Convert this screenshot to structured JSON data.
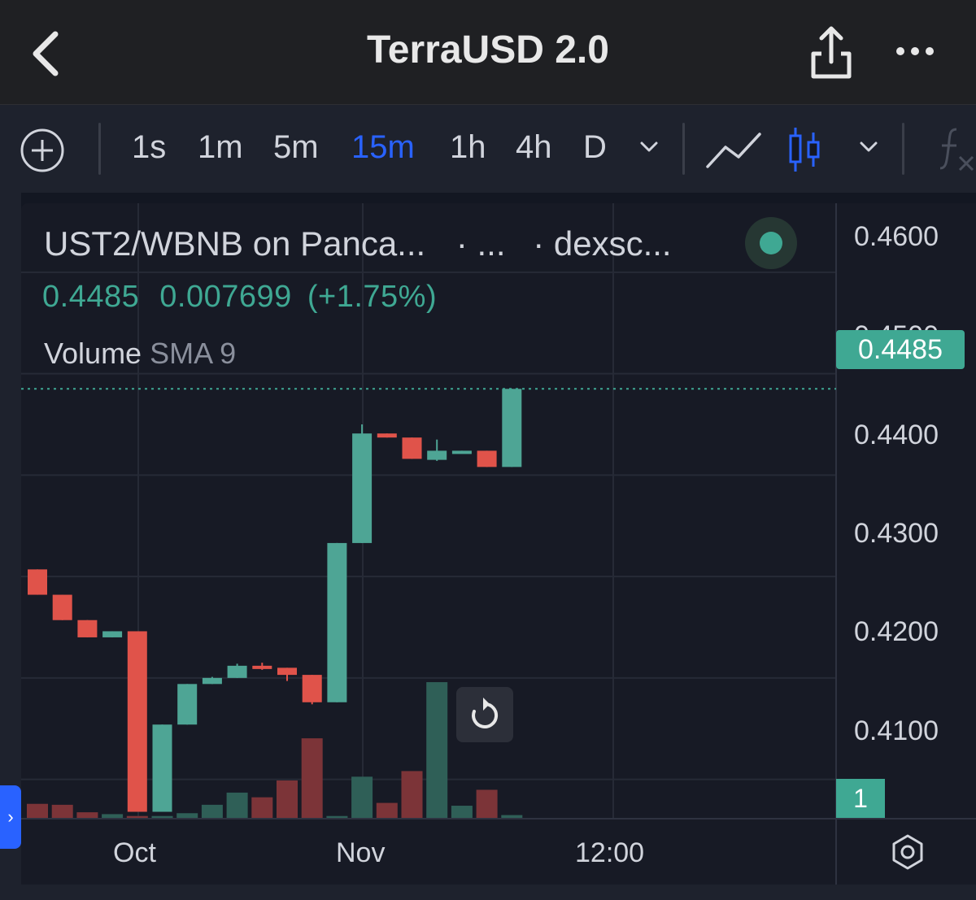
{
  "header": {
    "title": "TerraUSD 2.0",
    "back_icon": "chevron-left-icon",
    "share_icon": "share-icon",
    "more_icon": "more-horizontal-icon"
  },
  "toolbar": {
    "add_icon": "plus-circle-icon",
    "timeframes": [
      "1s",
      "1m",
      "5m",
      "15m",
      "1h",
      "4h",
      "D"
    ],
    "active_timeframe": "15m",
    "active_color": "#2962ff",
    "timeframe_dropdown_icon": "chevron-down-icon",
    "chart_type_line_icon": "line-chart-icon",
    "chart_type_candle_icon": "candlestick-icon",
    "chart_type_dropdown_icon": "chevron-down-icon",
    "indicators_icon": "function-icon"
  },
  "legend": {
    "symbol": "UST2/WBNB on Panca...",
    "interval": "· ...",
    "source": "· dexsc...",
    "last_price": "0.4485",
    "change": "0.007699",
    "change_pct": "(+1.75%)",
    "status": "market-open",
    "volume_label": "Volume",
    "volume_sma": "SMA 9"
  },
  "price_axis": {
    "labels": [
      "0.4600",
      "0.4500",
      "0.4400",
      "0.4300",
      "0.4200",
      "0.4100"
    ],
    "current_price_label": "0.4485",
    "volume_pane_label": "1"
  },
  "time_axis": {
    "labels": [
      "Oct",
      "Nov",
      "12:00"
    ]
  },
  "colors": {
    "up": "#4ea595",
    "down": "#e0534a",
    "up_volume": "#2f5f57",
    "down_volume": "#7c3438",
    "background": "#171a25",
    "grid": "#262a36",
    "price_line": "#3fa893"
  },
  "chart_data": {
    "type": "candlestick",
    "title": "",
    "ylim": [
      0.4062,
      0.4668
    ],
    "current_price": 0.4485,
    "candles": [
      {
        "o": 0.4307,
        "h": 0.4307,
        "l": 0.4282,
        "c": 0.4282
      },
      {
        "o": 0.4282,
        "h": 0.4282,
        "l": 0.4257,
        "c": 0.4257
      },
      {
        "o": 0.4257,
        "h": 0.4257,
        "l": 0.424,
        "c": 0.424
      },
      {
        "o": 0.424,
        "h": 0.4246,
        "l": 0.424,
        "c": 0.4246
      },
      {
        "o": 0.4246,
        "h": 0.4246,
        "l": 0.4068,
        "c": 0.4068
      },
      {
        "o": 0.4068,
        "h": 0.4154,
        "l": 0.4068,
        "c": 0.4154
      },
      {
        "o": 0.4154,
        "h": 0.4194,
        "l": 0.4154,
        "c": 0.4194
      },
      {
        "o": 0.4194,
        "h": 0.4201,
        "l": 0.4194,
        "c": 0.42
      },
      {
        "o": 0.42,
        "h": 0.4214,
        "l": 0.42,
        "c": 0.4212
      },
      {
        "o": 0.4212,
        "h": 0.4215,
        "l": 0.4208,
        "c": 0.421
      },
      {
        "o": 0.421,
        "h": 0.421,
        "l": 0.4197,
        "c": 0.4203
      },
      {
        "o": 0.4203,
        "h": 0.4203,
        "l": 0.4174,
        "c": 0.4176
      },
      {
        "o": 0.4176,
        "h": 0.4333,
        "l": 0.4176,
        "c": 0.4333
      },
      {
        "o": 0.4333,
        "h": 0.445,
        "l": 0.4333,
        "c": 0.4441
      },
      {
        "o": 0.4441,
        "h": 0.4441,
        "l": 0.4437,
        "c": 0.4437
      },
      {
        "o": 0.4437,
        "h": 0.4437,
        "l": 0.4416,
        "c": 0.4416
      },
      {
        "o": 0.4415,
        "h": 0.4435,
        "l": 0.4414,
        "c": 0.4424
      },
      {
        "o": 0.4423,
        "h": 0.4424,
        "l": 0.4422,
        "c": 0.4424
      },
      {
        "o": 0.4424,
        "h": 0.4424,
        "l": 0.4408,
        "c": 0.4408
      },
      {
        "o": 0.4408,
        "h": 0.4485,
        "l": 0.4408,
        "c": 0.4485
      }
    ],
    "volume": [
      {
        "v": 1.5,
        "dir": "down"
      },
      {
        "v": 1.4,
        "dir": "down"
      },
      {
        "v": 0.6,
        "dir": "down"
      },
      {
        "v": 0.4,
        "dir": "up"
      },
      {
        "v": 0.2,
        "dir": "down"
      },
      {
        "v": 0.2,
        "dir": "up"
      },
      {
        "v": 0.5,
        "dir": "up"
      },
      {
        "v": 1.4,
        "dir": "up"
      },
      {
        "v": 2.7,
        "dir": "up"
      },
      {
        "v": 2.2,
        "dir": "down"
      },
      {
        "v": 4.0,
        "dir": "down"
      },
      {
        "v": 8.5,
        "dir": "down"
      },
      {
        "v": 0.2,
        "dir": "up"
      },
      {
        "v": 4.4,
        "dir": "up"
      },
      {
        "v": 1.6,
        "dir": "down"
      },
      {
        "v": 5.0,
        "dir": "down"
      },
      {
        "v": 14.5,
        "dir": "up"
      },
      {
        "v": 1.3,
        "dir": "up"
      },
      {
        "v": 3.0,
        "dir": "down"
      },
      {
        "v": 0.3,
        "dir": "up"
      }
    ],
    "volume_max": 16.5
  }
}
